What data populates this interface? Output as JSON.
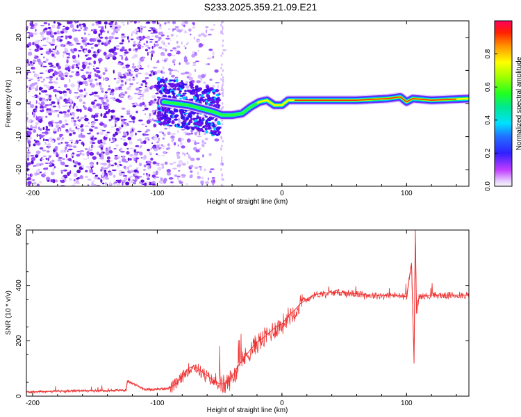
{
  "page_title": "S233.2025.359.21.09.E21",
  "chart_data": [
    {
      "type": "heatmap",
      "title": "S233.2025.359.21.09.E21",
      "xlabel": "Height of straight line (km)",
      "ylabel": "Frequency (Hz)",
      "xlim": [
        -205,
        150
      ],
      "ylim": [
        -25,
        25
      ],
      "xticks": [
        -200,
        -100,
        0,
        100
      ],
      "yticks": [
        -20,
        -10,
        0,
        10,
        20
      ],
      "colorbar": {
        "label": "Normalized spectral amplitude",
        "range": [
          0,
          1
        ],
        "ticks": [
          "0.0",
          "0.2",
          "0.4",
          "0.6",
          "0.8"
        ]
      },
      "ridge": {
        "x": [
          -95,
          -85,
          -75,
          -65,
          -55,
          -48,
          -40,
          -32,
          -25,
          -18,
          -12,
          -6,
          0,
          5,
          10,
          30,
          60,
          85,
          95,
          100,
          105,
          120,
          150
        ],
        "freq": [
          0.5,
          0.0,
          -0.5,
          -1.5,
          -2.5,
          -3.5,
          -3.5,
          -3.0,
          -1.0,
          0.5,
          1.0,
          -0.5,
          -0.5,
          1.0,
          1.0,
          1.0,
          1.0,
          1.5,
          2.0,
          0.5,
          1.5,
          1.0,
          1.5
        ]
      }
    },
    {
      "type": "line",
      "xlabel": "Height of straight line (km)",
      "ylabel": "SNR (10 * v/v)",
      "xlim": [
        -205,
        150
      ],
      "ylim": [
        0,
        600
      ],
      "xticks": [
        -200,
        -100,
        0,
        100
      ],
      "yticks": [
        0,
        200,
        400,
        600
      ],
      "series": [
        {
          "name": "SNR",
          "color": "#ee3333",
          "x": [
            -205,
            -180,
            -150,
            -125,
            -124,
            -110,
            -100,
            -90,
            -85,
            -80,
            -75,
            -70,
            -65,
            -60,
            -55,
            -50,
            -45,
            -40,
            -35,
            -30,
            -25,
            -20,
            -15,
            -10,
            -5,
            0,
            5,
            10,
            15,
            20,
            25,
            30,
            40,
            50,
            60,
            70,
            80,
            90,
            100,
            104,
            106,
            107,
            108,
            110,
            120,
            130,
            140,
            150
          ],
          "values": [
            15,
            18,
            20,
            22,
            55,
            25,
            25,
            30,
            45,
            70,
            100,
            110,
            90,
            75,
            55,
            45,
            45,
            70,
            110,
            140,
            170,
            195,
            210,
            230,
            250,
            260,
            290,
            310,
            335,
            350,
            365,
            370,
            375,
            375,
            370,
            365,
            365,
            365,
            360,
            480,
            120,
            600,
            300,
            360,
            365,
            365,
            365,
            365
          ]
        }
      ]
    }
  ]
}
